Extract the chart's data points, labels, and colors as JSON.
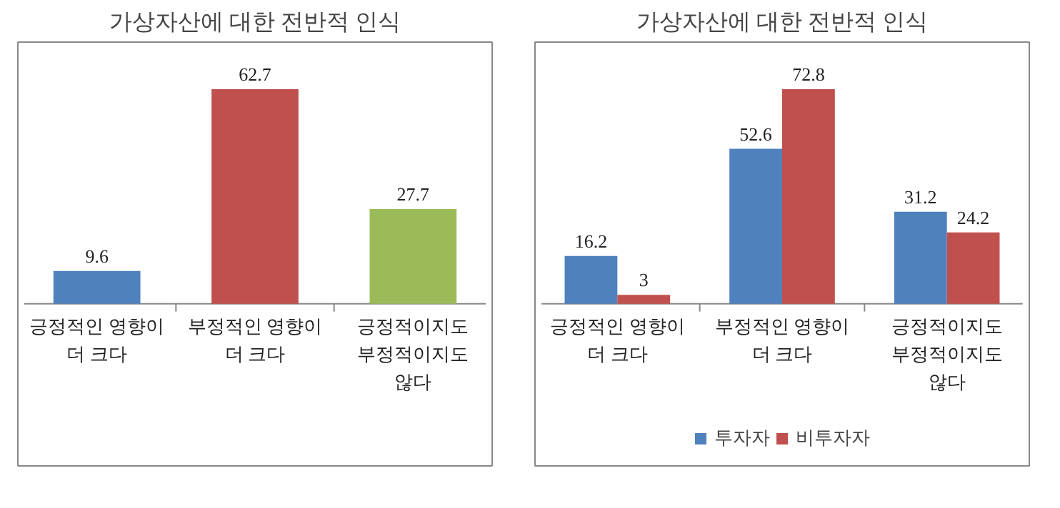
{
  "chart_data": [
    {
      "type": "bar",
      "title": "가상자산에 대한 전반적 인식",
      "categories": [
        "긍정적인 영향이\n더 크다",
        "부정적인 영향이\n더 크다",
        "긍정적이지도\n부정적이지도\n않다"
      ],
      "values": [
        9.6,
        62.7,
        27.7
      ],
      "colors": [
        "#4f81bd",
        "#c0504d",
        "#9bbb59"
      ],
      "data_labels": true,
      "grid": false,
      "legend": false
    },
    {
      "type": "bar",
      "title": "가상자산에 대한 전반적 인식",
      "categories": [
        "긍정적인 영향이\n더 크다",
        "부정적인 영향이\n더 크다",
        "긍정적이지도\n부정적이지도\n않다"
      ],
      "series": [
        {
          "name": "투자자",
          "color": "#4f81bd",
          "values": [
            16.2,
            52.6,
            31.2
          ]
        },
        {
          "name": "비투자자",
          "color": "#c0504d",
          "values": [
            3,
            72.8,
            24.2
          ]
        }
      ],
      "data_labels": true,
      "grid": false,
      "legend": "bottom"
    }
  ]
}
